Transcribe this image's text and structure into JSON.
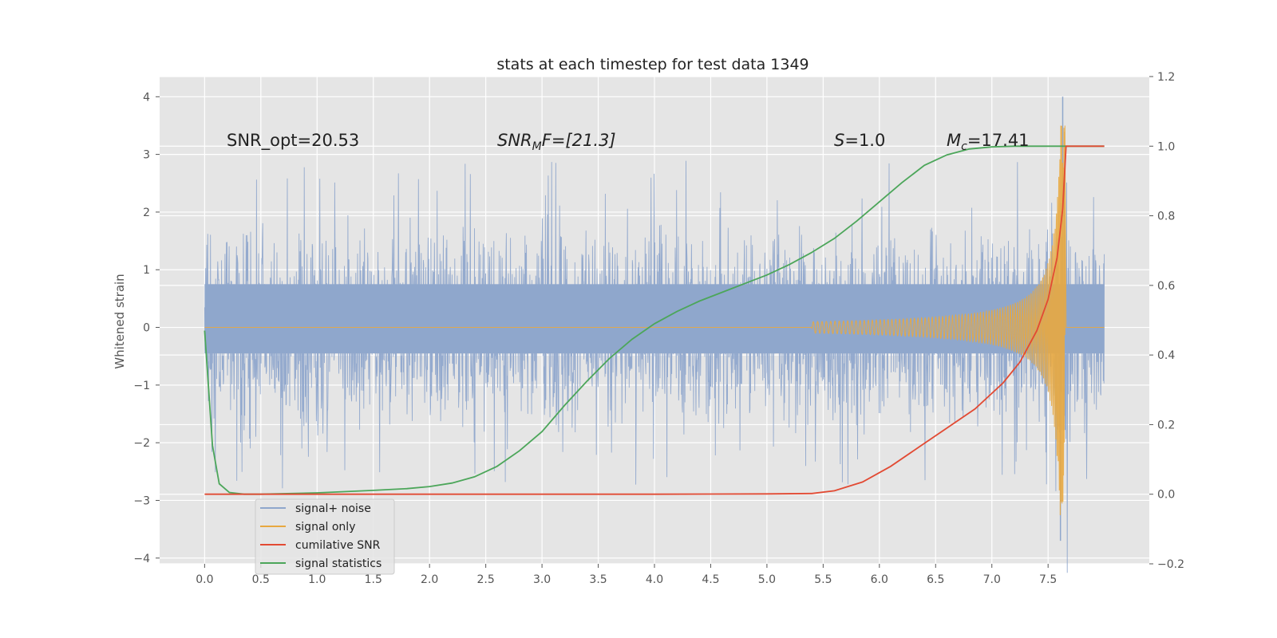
{
  "chart_data": {
    "type": "line",
    "title": "stats at each timestep for test data 1349",
    "ylabel": "Whitened strain",
    "xlabel": "",
    "x_ticks": [
      "0.0",
      "0.5",
      "1.0",
      "1.5",
      "2.0",
      "2.5",
      "3.0",
      "3.5",
      "4.0",
      "4.5",
      "5.0",
      "5.5",
      "6.0",
      "6.5",
      "7.0",
      "7.5"
    ],
    "y_ticks": [
      "4",
      "3",
      "2",
      "1",
      "0",
      "−1",
      "−2",
      "−3",
      "−4"
    ],
    "y2_ticks": [
      "1.2",
      "1.0",
      "0.8",
      "0.6",
      "0.4",
      "0.2",
      "0.0",
      "−0.2"
    ],
    "xlim": [
      -0.4,
      8.4
    ],
    "ylim": [
      -4.1,
      4.35
    ],
    "y2lim": [
      -0.2,
      1.2
    ],
    "grid": true,
    "legend_position": "lower-left",
    "annotations": {
      "snr_opt": "SNR_opt=20.53",
      "snr_mf_base": "SNR",
      "snr_mf_sub": "M",
      "snr_mf_rest": "F=[21.3]",
      "s_symbol": "S",
      "s_rest": "=1.0",
      "mc_base": "M",
      "mc_sub": "c",
      "mc_rest": "=17.41"
    },
    "colors": {
      "signal_noise": "#8fa7cc",
      "signal_only": "#e8a840",
      "cumulative_snr": "#e24a33",
      "signal_statistics": "#4ca65a",
      "plot_bg": "#e5e5e5",
      "grid": "#ffffff"
    },
    "series": [
      {
        "name": "signal+ noise",
        "axis": "left",
        "style": "noise",
        "summary": {
          "x_start": 0.0,
          "x_end": 8.0,
          "dense_band": [
            -0.45,
            0.75
          ],
          "max_peak": 4.0,
          "min_peak": -3.7
        }
      },
      {
        "name": "signal only",
        "axis": "left",
        "style": "chirp",
        "summary": {
          "x_start": 0.0,
          "x_end": 7.65,
          "chirp_onset": 5.4,
          "peak": 3.5
        }
      },
      {
        "name": "cumilative SNR",
        "axis": "right",
        "x": [
          0.0,
          0.5,
          1.0,
          2.0,
          3.0,
          4.0,
          5.0,
          5.4,
          5.6,
          5.85,
          6.1,
          6.35,
          6.6,
          6.85,
          7.1,
          7.25,
          7.4,
          7.5,
          7.58,
          7.63,
          7.66,
          8.0
        ],
        "y": [
          0.0,
          0.0,
          0.0,
          0.0,
          0.0,
          0.0,
          0.001,
          0.002,
          0.01,
          0.035,
          0.08,
          0.135,
          0.19,
          0.245,
          0.32,
          0.38,
          0.47,
          0.56,
          0.68,
          0.82,
          1.0,
          1.0
        ]
      },
      {
        "name": "signal statistics",
        "axis": "right",
        "x": [
          0.0,
          0.07,
          0.13,
          0.22,
          0.35,
          0.5,
          1.0,
          1.5,
          1.8,
          2.0,
          2.2,
          2.4,
          2.6,
          2.8,
          3.0,
          3.2,
          3.4,
          3.6,
          3.8,
          4.0,
          4.2,
          4.4,
          4.6,
          4.8,
          5.0,
          5.2,
          5.4,
          5.6,
          5.8,
          6.0,
          6.2,
          6.4,
          6.6,
          6.8,
          7.0,
          7.2,
          7.4,
          7.6,
          8.0
        ],
        "y": [
          0.47,
          0.14,
          0.03,
          0.005,
          0.0,
          0.0,
          0.004,
          0.011,
          0.016,
          0.022,
          0.032,
          0.05,
          0.08,
          0.125,
          0.18,
          0.255,
          0.325,
          0.39,
          0.445,
          0.49,
          0.525,
          0.555,
          0.58,
          0.605,
          0.63,
          0.66,
          0.695,
          0.735,
          0.785,
          0.84,
          0.895,
          0.945,
          0.975,
          0.992,
          0.998,
          1.0,
          1.0,
          1.0,
          1.0
        ]
      }
    ]
  }
}
